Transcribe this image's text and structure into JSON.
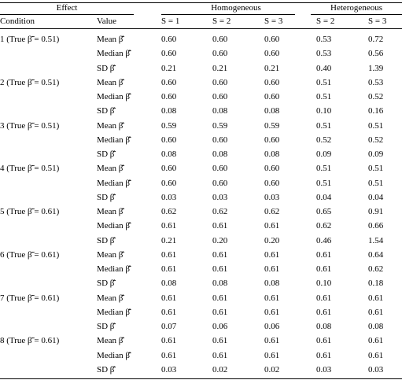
{
  "header": {
    "groups": [
      "Effect",
      "Homogeneous",
      "Heterogeneous"
    ],
    "columns": [
      "Condition",
      "Value",
      "S = 1",
      "S = 2",
      "S = 3",
      "S = 2",
      "S = 3"
    ]
  },
  "conditions": [
    {
      "label": "1 (True β̄̃ = 0.51)",
      "rows": [
        {
          "stat": "Mean β̄̂",
          "values": [
            "0.60",
            "0.60",
            "0.60",
            "0.53",
            "0.72"
          ]
        },
        {
          "stat": "Median β̄̂",
          "values": [
            "0.60",
            "0.60",
            "0.60",
            "0.53",
            "0.56"
          ]
        },
        {
          "stat": "SD β̄̂",
          "values": [
            "0.21",
            "0.21",
            "0.21",
            "0.40",
            "1.39"
          ]
        }
      ]
    },
    {
      "label": "2 (True β̄̃ = 0.51)",
      "rows": [
        {
          "stat": "Mean β̄̂",
          "values": [
            "0.60",
            "0.60",
            "0.60",
            "0.51",
            "0.53"
          ]
        },
        {
          "stat": "Median β̄̂",
          "values": [
            "0.60",
            "0.60",
            "0.60",
            "0.51",
            "0.52"
          ]
        },
        {
          "stat": "SD β̄̂",
          "values": [
            "0.08",
            "0.08",
            "0.08",
            "0.10",
            "0.16"
          ]
        }
      ]
    },
    {
      "label": "3 (True β̄̃ = 0.51)",
      "rows": [
        {
          "stat": "Mean β̄̂",
          "values": [
            "0.59",
            "0.59",
            "0.59",
            "0.51",
            "0.51"
          ]
        },
        {
          "stat": "Median β̄̂",
          "values": [
            "0.60",
            "0.60",
            "0.60",
            "0.52",
            "0.52"
          ]
        },
        {
          "stat": "SD β̄̂",
          "values": [
            "0.08",
            "0.08",
            "0.08",
            "0.09",
            "0.09"
          ]
        }
      ]
    },
    {
      "label": "4 (True β̄̃ = 0.51)",
      "rows": [
        {
          "stat": "Mean β̄̂",
          "values": [
            "0.60",
            "0.60",
            "0.60",
            "0.51",
            "0.51"
          ]
        },
        {
          "stat": "Median β̄̂",
          "values": [
            "0.60",
            "0.60",
            "0.60",
            "0.51",
            "0.51"
          ]
        },
        {
          "stat": "SD β̄̂",
          "values": [
            "0.03",
            "0.03",
            "0.03",
            "0.04",
            "0.04"
          ]
        }
      ]
    },
    {
      "label": "5 (True β̄̃ = 0.61)",
      "rows": [
        {
          "stat": "Mean β̄̂",
          "values": [
            "0.62",
            "0.62",
            "0.62",
            "0.65",
            "0.91"
          ]
        },
        {
          "stat": "Median β̄̂",
          "values": [
            "0.61",
            "0.61",
            "0.61",
            "0.62",
            "0.66"
          ]
        },
        {
          "stat": "SD β̄̂",
          "values": [
            "0.21",
            "0.20",
            "0.20",
            "0.46",
            "1.54"
          ]
        }
      ]
    },
    {
      "label": "6 (True β̄̃ = 0.61)",
      "rows": [
        {
          "stat": "Mean β̄̂",
          "values": [
            "0.61",
            "0.61",
            "0.61",
            "0.61",
            "0.64"
          ]
        },
        {
          "stat": "Median β̄̂",
          "values": [
            "0.61",
            "0.61",
            "0.61",
            "0.61",
            "0.62"
          ]
        },
        {
          "stat": "SD β̄̂",
          "values": [
            "0.08",
            "0.08",
            "0.08",
            "0.10",
            "0.18"
          ]
        }
      ]
    },
    {
      "label": "7 (True β̄̃ = 0.61)",
      "rows": [
        {
          "stat": "Mean β̄̂",
          "values": [
            "0.61",
            "0.61",
            "0.61",
            "0.61",
            "0.61"
          ]
        },
        {
          "stat": "Median β̄̂",
          "values": [
            "0.61",
            "0.61",
            "0.61",
            "0.61",
            "0.61"
          ]
        },
        {
          "stat": "SD β̄̂",
          "values": [
            "0.07",
            "0.06",
            "0.06",
            "0.08",
            "0.08"
          ]
        }
      ]
    },
    {
      "label": "8 (True β̄̃ = 0.61)",
      "rows": [
        {
          "stat": "Mean β̄̂",
          "values": [
            "0.61",
            "0.61",
            "0.61",
            "0.61",
            "0.61"
          ]
        },
        {
          "stat": "Median β̄̂",
          "values": [
            "0.61",
            "0.61",
            "0.61",
            "0.61",
            "0.61"
          ]
        },
        {
          "stat": "SD β̄̂",
          "values": [
            "0.03",
            "0.02",
            "0.02",
            "0.03",
            "0.03"
          ]
        }
      ]
    }
  ]
}
